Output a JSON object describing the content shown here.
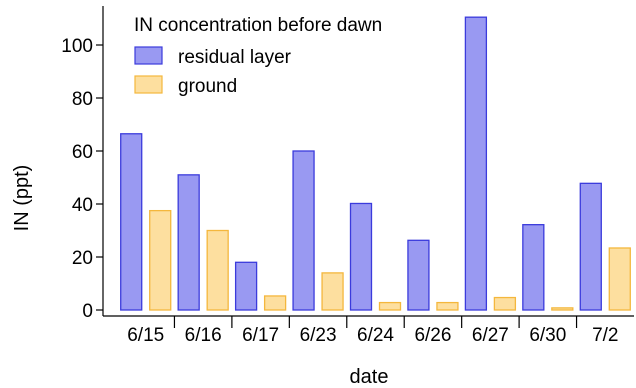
{
  "chart_data": {
    "type": "bar",
    "title": "",
    "xlabel": "date",
    "ylabel": "IN (ppt)",
    "categories": [
      "6/15",
      "6/16",
      "6/17",
      "6/23",
      "6/24",
      "6/26",
      "6/27",
      "6/30",
      "7/2"
    ],
    "series": [
      {
        "name": "residual layer",
        "values": [
          66.5,
          51,
          18,
          60,
          40.2,
          26.3,
          110.5,
          32.2,
          47.8
        ],
        "color": "#9999f2",
        "stroke": "#3b3bdc"
      },
      {
        "name": "ground",
        "values": [
          37.5,
          30,
          5.3,
          14,
          2.8,
          2.8,
          4.7,
          0.8,
          23.4
        ],
        "color": "#fddf9f",
        "stroke": "#f4b73d"
      }
    ],
    "ylim": [
      -2,
      112
    ],
    "yticks": [
      0,
      20,
      40,
      60,
      80,
      100
    ],
    "legend": {
      "title": "IN concentration before dawn",
      "placement": "top-left"
    },
    "grid": false
  }
}
